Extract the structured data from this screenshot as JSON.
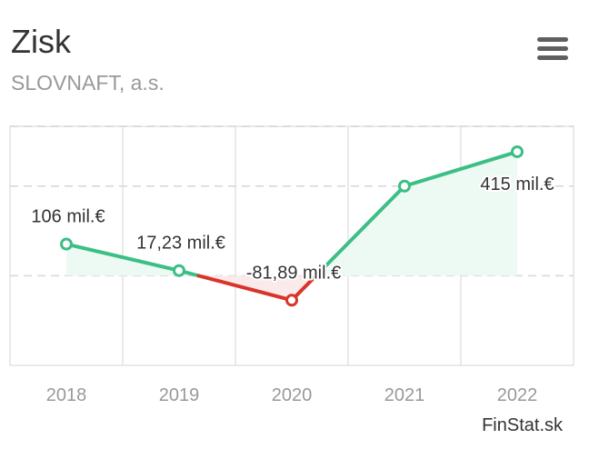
{
  "header": {
    "title": "Zisk",
    "subtitle": "SLOVNAFT, a.s."
  },
  "menu": {
    "icon": "hamburger-menu-icon"
  },
  "credit": "FinStat.sk",
  "colors": {
    "positive": "#3bbf84",
    "negative": "#d9342b",
    "positive_fill": "#edf9f3",
    "negative_fill": "#fbeaea",
    "grid": "#e3e3e3",
    "text": "#333333",
    "muted": "#999999"
  },
  "chart_data": {
    "type": "line",
    "title": "Zisk",
    "subtitle": "SLOVNAFT, a.s.",
    "categories": [
      "2018",
      "2019",
      "2020",
      "2021",
      "2022"
    ],
    "series": [
      {
        "values": [
          106,
          17.23,
          -81.89,
          300,
          415
        ],
        "labels": [
          "106 mil.€",
          "17,23 mil.€",
          "-81,89 mil.€",
          "",
          "415 mil.€"
        ]
      }
    ],
    "unit": "mil.€",
    "ylim": [
      -300,
      500
    ],
    "gridlines": [
      0,
      300
    ],
    "grid": true,
    "legend": false
  }
}
